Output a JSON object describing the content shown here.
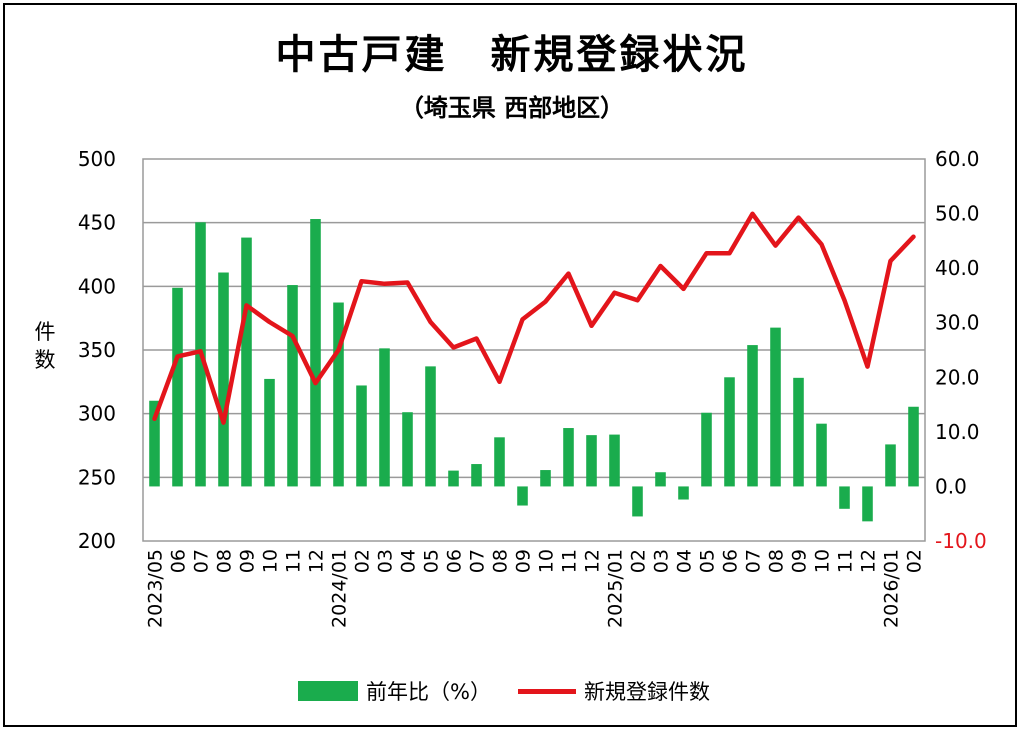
{
  "title": "中古戸建　新規登録状況",
  "subtitle": "（埼玉県 西部地区）",
  "colors": {
    "bar": "#1aac4d",
    "line": "#e3151b",
    "negative_tick": "#e3151b",
    "grid": "#9a9a9a"
  },
  "chart_data": {
    "type": "bar",
    "title": "中古戸建　新規登録状況",
    "subtitle": "（埼玉県 西部地区）",
    "categories": [
      "2023/05",
      "06",
      "07",
      "08",
      "09",
      "10",
      "11",
      "12",
      "2024/01",
      "02",
      "03",
      "04",
      "05",
      "06",
      "07",
      "08",
      "09",
      "10",
      "11",
      "12",
      "2025/01",
      "02",
      "03",
      "04",
      "05",
      "06",
      "07",
      "08",
      "09",
      "10",
      "11",
      "12",
      "2026/01",
      "02"
    ],
    "ylabel": "件数",
    "ylim": [
      200,
      500
    ],
    "yticks": [
      "500",
      "450",
      "400",
      "350",
      "300",
      "250",
      "200"
    ],
    "y2lim": [
      -10,
      60
    ],
    "y2ticks": [
      "60.0",
      "50.0",
      "40.0",
      "30.0",
      "20.0",
      "10.0",
      "0.0",
      "-10.0"
    ],
    "grid": true,
    "legend_position": "bottom",
    "series": [
      {
        "name": "前年比（%）",
        "type": "bar",
        "axis": "right",
        "values": [
          15.7,
          36.4,
          48.4,
          39.2,
          45.6,
          19.7,
          36.9,
          49.0,
          33.7,
          18.5,
          25.3,
          13.6,
          22.0,
          2.9,
          4.1,
          9.0,
          -3.5,
          3.0,
          10.7,
          9.4,
          9.5,
          -5.5,
          2.6,
          -2.4,
          13.5,
          20.0,
          25.9,
          29.1,
          19.9,
          11.5,
          -4.1,
          -6.4,
          7.7,
          14.6
        ]
      },
      {
        "name": "新規登録件数",
        "type": "line",
        "axis": "left",
        "values": [
          296,
          345,
          349,
          293,
          385,
          372,
          361,
          324,
          350,
          404,
          402,
          403,
          372,
          352,
          359,
          325,
          374,
          388,
          410,
          369,
          395,
          389,
          416,
          398,
          426,
          426,
          457,
          432,
          454,
          433,
          389,
          337,
          420,
          439
        ]
      }
    ]
  }
}
